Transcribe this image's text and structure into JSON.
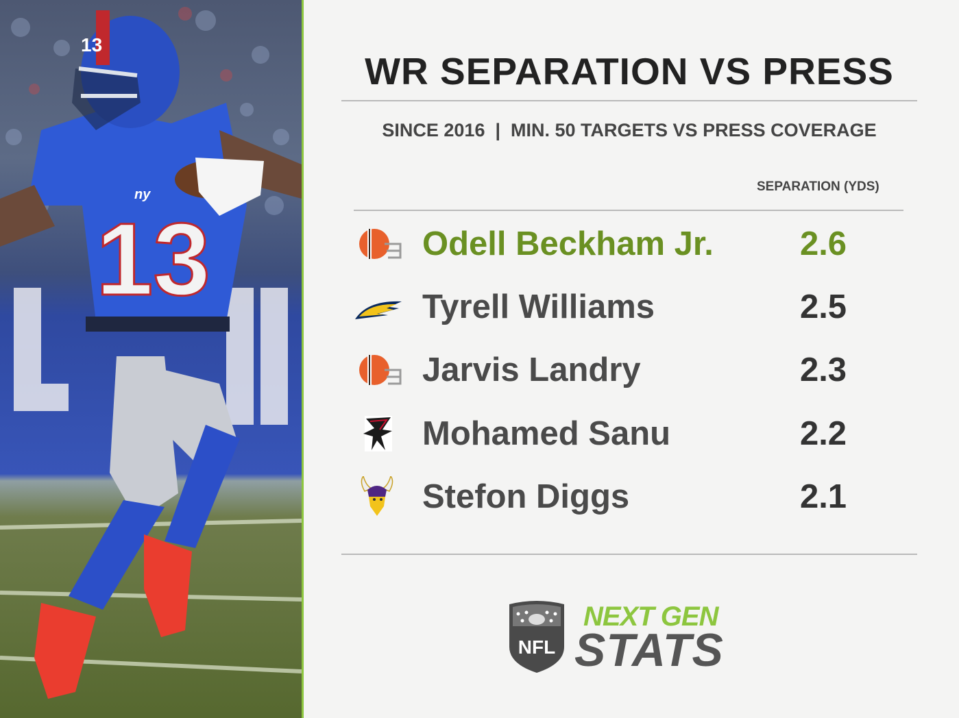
{
  "photo": {
    "jersey_number": "13",
    "helmet_number": "13",
    "team_mark": "ny"
  },
  "title": "WR SEPARATION VS PRESS",
  "subtitle": "SINCE 2016  |  MIN. 50 TARGETS VS PRESS COVERAGE",
  "column_header": "SEPARATION (YDS)",
  "rows": [
    {
      "name": "Odell Beckham Jr.",
      "value": "2.6",
      "logo": "browns-helmet-icon",
      "highlight": true
    },
    {
      "name": "Tyrell Williams",
      "value": "2.5",
      "logo": "chargers-bolt-icon",
      "highlight": false
    },
    {
      "name": "Jarvis Landry",
      "value": "2.3",
      "logo": "browns-helmet-icon",
      "highlight": false
    },
    {
      "name": "Mohamed Sanu",
      "value": "2.2",
      "logo": "falcons-icon",
      "highlight": false
    },
    {
      "name": "Stefon Diggs",
      "value": "2.1",
      "logo": "vikings-icon",
      "highlight": false
    }
  ],
  "brand": {
    "line1": "NEXT GEN",
    "line2": "STATS",
    "shield_text": "NFL"
  },
  "colors": {
    "accent_green": "#8dc63f",
    "highlight_green": "#6a9022",
    "text_dark": "#222222",
    "rule_gray": "#b9b9b9"
  }
}
